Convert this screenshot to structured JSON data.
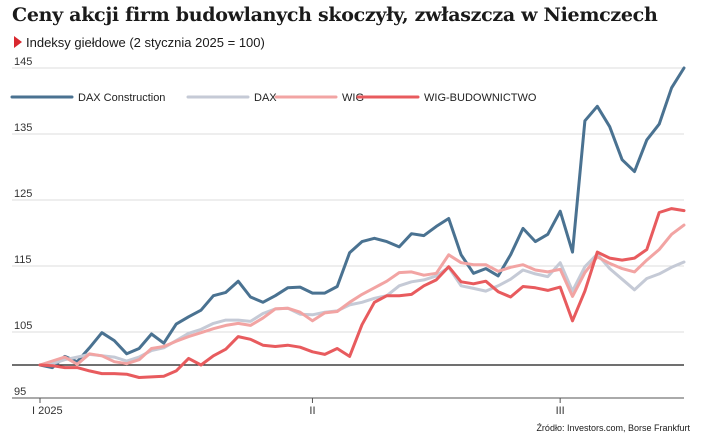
{
  "header": {
    "title": "Ceny akcji firm budowlanych skoczyły, zwłaszcza w Niemczech",
    "subtitle": "Indeksy giełdowe (2 stycznia 2025 = 100)"
  },
  "footer": {
    "source": "Źródło: Investors.com, Borse Frankfurt"
  },
  "chart_data": {
    "type": "line",
    "title": "Ceny akcji firm budowlanych skoczyły, zwłaszcza w Niemczech",
    "subtitle": "Indeksy giełdowe (2 stycznia 2025 = 100)",
    "xlabel": "",
    "ylabel": "",
    "ylim": [
      95,
      147
    ],
    "y_ticks": [
      95,
      105,
      115,
      125,
      135,
      145
    ],
    "baseline": 100,
    "grid": "horizontal",
    "legend_position": "top-left",
    "x_ticks": [
      {
        "label": "I 2025",
        "index": 0
      },
      {
        "label": "II",
        "index": 22
      },
      {
        "label": "III",
        "index": 42
      }
    ],
    "series": [
      {
        "name": "DAX Construction",
        "color": "#4a7291",
        "values": [
          100,
          99.6,
          101.3,
          100.5,
          102.6,
          104.9,
          103.7,
          101.7,
          102.5,
          104.7,
          103.3,
          106.2,
          107.3,
          108.3,
          110.5,
          111,
          112.7,
          110.3,
          109.5,
          110.5,
          111.7,
          111.8,
          110.9,
          110.9,
          111.9,
          117,
          118.7,
          119.2,
          118.7,
          117.9,
          119.9,
          119.6,
          121,
          122.2,
          116.7,
          113.9,
          114.6,
          113.5,
          116.7,
          120.7,
          118.7,
          119.8,
          123.3,
          117.1,
          137,
          139.2,
          136.1,
          131.1,
          129.3,
          134.1,
          136.5,
          142,
          145
        ]
      },
      {
        "name": "DAX",
        "color": "#c5cad6",
        "values": [
          100,
          100.2,
          100.8,
          101.2,
          101.6,
          101.4,
          101.2,
          100.6,
          101.2,
          102.2,
          102.6,
          103.7,
          104.8,
          105.4,
          106.3,
          106.8,
          106.8,
          106.6,
          107.8,
          108.5,
          108.6,
          107.7,
          107.6,
          108,
          108.2,
          109.1,
          109.5,
          110.1,
          110.5,
          112,
          112.6,
          112.9,
          113.5,
          114.8,
          112,
          111.6,
          111.2,
          112,
          113,
          114.4,
          113.8,
          113.4,
          115.5,
          111.2,
          114.9,
          116.8,
          114.6,
          113,
          111.4,
          113.1,
          113.8,
          114.8,
          115.6
        ]
      },
      {
        "name": "WIG",
        "color": "#f2a4a3",
        "values": [
          100,
          100.6,
          101.2,
          100.1,
          101.7,
          101.4,
          100.5,
          100.2,
          100.8,
          102.5,
          102.8,
          103.6,
          104.3,
          104.9,
          105.5,
          106,
          106.3,
          106,
          107.1,
          108.5,
          108.6,
          108,
          106.7,
          107.9,
          108.1,
          109.5,
          110.7,
          111.7,
          112.7,
          114,
          114.1,
          113.6,
          113.9,
          116.7,
          115.5,
          115.2,
          115.2,
          114.2,
          114.8,
          115.2,
          114.4,
          114.1,
          114.5,
          110.4,
          114,
          116.4,
          115.4,
          114.6,
          114.1,
          115.9,
          117.5,
          119.8,
          121.2
        ]
      },
      {
        "name": "WIG-BUDOWNICTWO",
        "color": "#e85b5e",
        "values": [
          100,
          99.9,
          99.6,
          99.6,
          99.1,
          98.7,
          98.7,
          98.6,
          98.1,
          98.2,
          98.3,
          99.1,
          101,
          100,
          101.4,
          102.4,
          104.3,
          103.9,
          103,
          102.8,
          103,
          102.7,
          102,
          101.6,
          102.5,
          101.3,
          106.1,
          109.5,
          110.5,
          110.5,
          110.7,
          112,
          112.9,
          114.9,
          112.6,
          112.3,
          112.7,
          111.1,
          110.3,
          111.9,
          111.7,
          111.3,
          111.8,
          106.7,
          111.2,
          117.1,
          116.2,
          115.9,
          116.2,
          117.5,
          123.1,
          123.7,
          123.4
        ]
      }
    ]
  }
}
